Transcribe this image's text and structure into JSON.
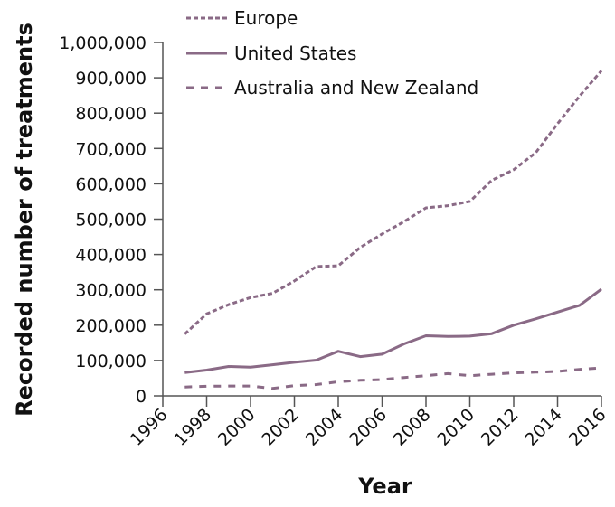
{
  "chart_data": {
    "type": "line",
    "title": "",
    "xlabel": "Year",
    "ylabel": "Recorded number of treatments",
    "xlim": [
      1996,
      2016
    ],
    "ylim": [
      0,
      1000000
    ],
    "grid": false,
    "legend_position": "top-left-inside",
    "x_ticks": [
      1996,
      1998,
      2000,
      2002,
      2004,
      2006,
      2008,
      2010,
      2012,
      2014,
      2016
    ],
    "y_ticks": [
      0,
      100000,
      200000,
      300000,
      400000,
      500000,
      600000,
      700000,
      800000,
      900000,
      1000000
    ],
    "y_tick_labels": [
      "0",
      "100,000",
      "200,000",
      "300,000",
      "400,000",
      "500,000",
      "600,000",
      "700,000",
      "800,000",
      "900,000",
      "1,000,000"
    ],
    "x": [
      1997,
      1998,
      1999,
      2000,
      2001,
      2002,
      2003,
      2004,
      2005,
      2006,
      2007,
      2008,
      2009,
      2010,
      2011,
      2012,
      2013,
      2014,
      2015,
      2016
    ],
    "series": [
      {
        "name": "Europe",
        "style": "dotted",
        "values": [
          175000,
          232000,
          258000,
          278000,
          290000,
          325000,
          366000,
          368000,
          420000,
          458000,
          493000,
          532000,
          538000,
          550000,
          610000,
          640000,
          688000,
          770000,
          848000,
          920000
        ]
      },
      {
        "name": "United States",
        "style": "solid",
        "values": [
          66000,
          73000,
          83000,
          81000,
          88000,
          95000,
          101000,
          126000,
          111000,
          118000,
          147000,
          170000,
          168000,
          169000,
          176000,
          200000,
          218000,
          237000,
          256000,
          302000
        ]
      },
      {
        "name": "Australia and New Zealand",
        "style": "dashed",
        "values": [
          25000,
          27000,
          28000,
          28000,
          21000,
          29000,
          32000,
          40000,
          44000,
          46000,
          52000,
          57000,
          63000,
          57000,
          61000,
          65000,
          67000,
          69000,
          75000,
          79000
        ]
      }
    ]
  },
  "colors": {
    "series": "#8a6a86",
    "axis": "#555555",
    "text": "#111111"
  },
  "legend": {
    "items": [
      {
        "label": "Europe",
        "style": "dotted"
      },
      {
        "label": "United States",
        "style": "solid"
      },
      {
        "label": "Australia and New Zealand",
        "style": "dashed"
      }
    ]
  },
  "axes": {
    "x_title": "Year",
    "y_title": "Recorded number of treatments"
  }
}
